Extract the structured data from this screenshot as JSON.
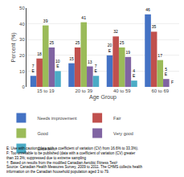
{
  "chart_data": {
    "type": "bar",
    "xlabel": "Age Group",
    "ylabel": "Percent (%)",
    "categories": [
      "15 to 19",
      "20 to 39",
      "40 to 59",
      "60 to 69"
    ],
    "series": [
      {
        "name": "Needs improvement",
        "color": "#4472C4",
        "values": [
          7,
          15,
          20,
          46
        ],
        "value_labels": [
          "7\nE",
          "15",
          "20\nE",
          "46"
        ]
      },
      {
        "name": "Fair",
        "color": "#C0504D",
        "values": [
          18,
          25,
          32,
          35
        ],
        "value_labels": [
          "18",
          "25",
          "32",
          "35"
        ]
      },
      {
        "name": "Good",
        "color": "#9BBB59",
        "values": [
          39,
          41,
          25,
          17
        ],
        "value_labels": [
          "39",
          "41",
          "25",
          "17"
        ]
      },
      {
        "name": "Very good",
        "color": "#8064A2",
        "values": [
          25,
          13,
          19,
          5
        ],
        "value_labels": [
          "25",
          "13",
          "19",
          "5\nE"
        ]
      },
      {
        "name": "Excellent",
        "color": "#4BACC6",
        "values": [
          10,
          7,
          4,
          0
        ],
        "value_labels": [
          "10\nE",
          "7\nE",
          "4\nE",
          "F"
        ]
      }
    ],
    "ylim": [
      0,
      50
    ],
    "yticks": [
      0,
      10,
      20,
      30,
      40,
      50
    ],
    "grid": true,
    "legend": "bottom",
    "data_labels": true,
    "annotations": [
      "E: Use with caution (data with a coefficient of variation (CV) from 16.6% to 33.3%).",
      "F: Too unreliable to be published (data with a coefficient of variation (CV) greater",
      "than 33.3%; suppressed due to extreme sampling",
      "†: Based on results from the modified Canadian Aerobic Fitness Test²",
      "Source: Canadian Health Measures Survey, 2009 to 2011. The CHMS collects health",
      "information on the Canadian household population aged 3 to 79."
    ]
  }
}
